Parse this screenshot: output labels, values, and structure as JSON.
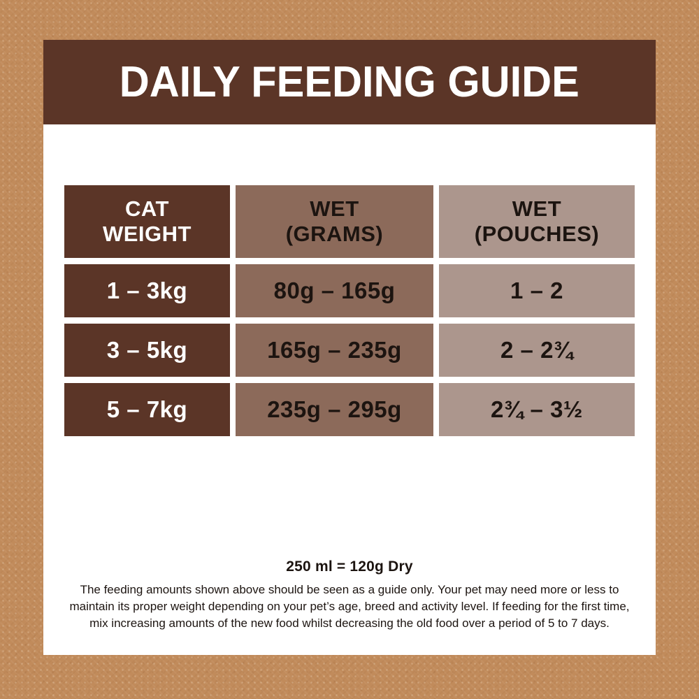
{
  "header": {
    "title": "DAILY FEEDING GUIDE"
  },
  "table": {
    "columns": [
      {
        "id": "cat-weight",
        "label": "CAT\nWEIGHT",
        "style": "dark"
      },
      {
        "id": "wet-grams",
        "label": "WET\n(GRAMS)",
        "style": "medium"
      },
      {
        "id": "wet-pouches",
        "label": "WET\n(POUCHES)",
        "style": "light"
      }
    ],
    "rows": [
      {
        "cat_weight": "1 – 3kg",
        "wet_grams": "80g – 165g",
        "wet_pouches": "1 – 2"
      },
      {
        "cat_weight": "3 – 5kg",
        "wet_grams": "165g – 235g",
        "wet_pouches": "2 – 2¾"
      },
      {
        "cat_weight": "5 – 7kg",
        "wet_grams": "235g – 295g",
        "wet_pouches": "2¾ – 3½"
      }
    ]
  },
  "footer": {
    "dry_equivalence": "250 ml = 120g Dry",
    "note_lines": [
      "The feeding amounts shown above should be seen as a guide only. Your pet may need more or less to",
      "maintain its proper weight depending on your pet’s age, breed and activity level. If feeding for the first time,",
      "mix increasing amounts of the new food whilst decreasing the old food over a period of 5 to 7 days."
    ]
  },
  "colors": {
    "background_tan": "#c18b5b",
    "dark_brown": "#5b3527",
    "medium_brown": "#8c6a5a",
    "light_taupe": "#ac968d",
    "panel_white": "#ffffff",
    "text_dark": "#1c1410",
    "title_text": "#ffffff"
  }
}
